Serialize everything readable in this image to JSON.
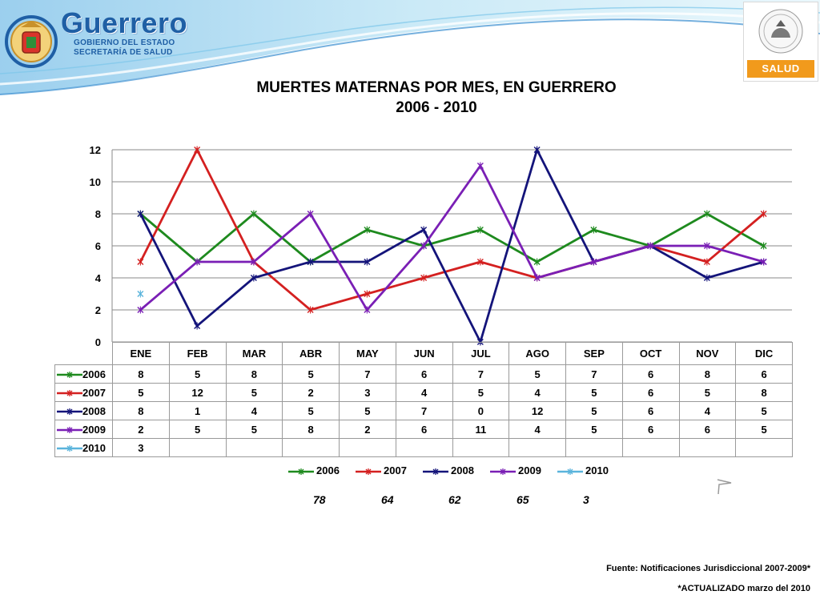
{
  "header": {
    "logo_text": "Guerrero",
    "logo_line1": "GOBIERNO DEL ESTADO",
    "logo_line2": "SECRETARÍA DE SALUD",
    "salud_label": "SALUD"
  },
  "title": {
    "line1": "MUERTES MATERNAS POR MES, EN GUERRERO",
    "line2": "2006 - 2010"
  },
  "chart_data": {
    "type": "line",
    "title": "MUERTES MATERNAS POR MES, EN GUERRERO 2006 - 2010",
    "categories": [
      "ENE",
      "FEB",
      "MAR",
      "ABR",
      "MAY",
      "JUN",
      "JUL",
      "AGO",
      "SEP",
      "OCT",
      "NOV",
      "DIC"
    ],
    "ylim": [
      0,
      12
    ],
    "yticks": [
      0,
      2,
      4,
      6,
      8,
      10,
      12
    ],
    "grid": true,
    "legend_position": "bottom",
    "series": [
      {
        "name": "2006",
        "color": "#1e8a1e",
        "values": [
          8,
          5,
          8,
          5,
          7,
          6,
          7,
          5,
          7,
          6,
          8,
          6
        ]
      },
      {
        "name": "2007",
        "color": "#d42020",
        "values": [
          5,
          12,
          5,
          2,
          3,
          4,
          5,
          4,
          5,
          6,
          5,
          8
        ]
      },
      {
        "name": "2008",
        "color": "#14147a",
        "values": [
          8,
          1,
          4,
          5,
          5,
          7,
          0,
          12,
          5,
          6,
          4,
          5
        ]
      },
      {
        "name": "2009",
        "color": "#7a1fb5",
        "values": [
          2,
          5,
          5,
          8,
          2,
          6,
          11,
          4,
          5,
          6,
          6,
          5
        ]
      },
      {
        "name": "2010",
        "color": "#5ab4dc",
        "values": [
          3,
          null,
          null,
          null,
          null,
          null,
          null,
          null,
          null,
          null,
          null,
          null
        ]
      }
    ]
  },
  "totals": [
    "78",
    "64",
    "62",
    "65",
    "3"
  ],
  "footer": {
    "source": "Fuente: Notificaciones Jurisdiccional 2007-2009*",
    "updated": "*ACTUALIZADO   marzo del 2010"
  }
}
